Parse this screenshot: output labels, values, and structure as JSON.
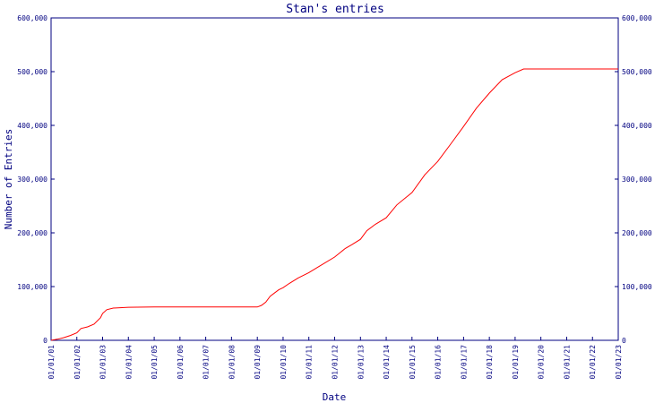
{
  "chart_data": {
    "type": "line",
    "title": "Stan's entries",
    "xlabel": "Date",
    "ylabel": "Number of Entries",
    "x_tick_labels": [
      "01/01/01",
      "01/01/02",
      "01/01/03",
      "01/01/04",
      "01/01/05",
      "01/01/06",
      "01/01/07",
      "01/01/08",
      "01/01/09",
      "01/01/10",
      "01/01/11",
      "01/01/12",
      "01/01/13",
      "01/01/14",
      "01/01/15",
      "01/01/16",
      "01/01/17",
      "01/01/18",
      "01/01/19",
      "01/01/20",
      "01/01/21",
      "01/01/22",
      "01/01/23"
    ],
    "y_tick_labels": [
      "0",
      "100,000",
      "200,000",
      "300,000",
      "400,000",
      "500,000",
      "600,000"
    ],
    "ylim": [
      0,
      600000
    ],
    "xlim": [
      "2001-01-01",
      "2023-01-01"
    ],
    "grid": false,
    "line_color": "#ff0000",
    "axis_color": "#000080",
    "series": [
      {
        "x": [
          "2001-01-01",
          "2001-04-01",
          "2001-07-01",
          "2001-10-01",
          "2002-01-01",
          "2002-03-01",
          "2002-06-01",
          "2002-09-01",
          "2002-12-01",
          "2003-01-01",
          "2003-03-01",
          "2003-06-01",
          "2004-01-01",
          "2005-01-01",
          "2006-01-01",
          "2007-01-01",
          "2008-01-01",
          "2009-01-01",
          "2009-03-01",
          "2009-05-01",
          "2009-07-01",
          "2009-09-01",
          "2009-11-01",
          "2010-01-01",
          "2010-04-01",
          "2010-08-01",
          "2011-01-01",
          "2011-06-01",
          "2012-01-01",
          "2012-06-01",
          "2012-09-01",
          "2013-01-01",
          "2013-04-01",
          "2013-08-01",
          "2014-01-01",
          "2014-06-01",
          "2015-01-01",
          "2015-07-01",
          "2016-01-01",
          "2016-07-01",
          "2017-01-01",
          "2017-07-01",
          "2018-01-01",
          "2018-07-01",
          "2019-01-01",
          "2019-05-01",
          "2020-01-01",
          "2021-01-01",
          "2022-01-01",
          "2023-01-01"
        ],
        "y": [
          0,
          2000,
          5000,
          9000,
          14000,
          22000,
          25000,
          30000,
          42000,
          50000,
          57000,
          60000,
          61500,
          62000,
          62000,
          62000,
          62000,
          62000,
          65000,
          71000,
          82000,
          88000,
          94000,
          98000,
          106000,
          116000,
          126000,
          138000,
          155000,
          171000,
          178000,
          188000,
          204000,
          216000,
          228000,
          252000,
          275000,
          308000,
          333000,
          365000,
          398000,
          432000,
          460000,
          485000,
          498000,
          505000,
          505000,
          505000,
          505000,
          505000
        ]
      }
    ]
  }
}
